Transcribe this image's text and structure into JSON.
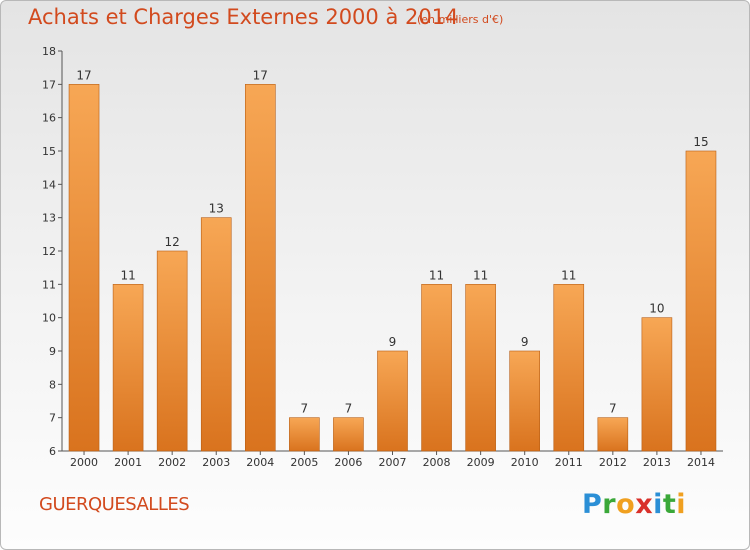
{
  "header": {
    "title": "Achats et Charges Externes 2000 à 2014",
    "subtitle": "(en milliers d'€)"
  },
  "footer": {
    "commune": "GUERQUESALLES",
    "logo": [
      "P",
      "r",
      "o",
      "x",
      "i",
      "t",
      "i"
    ]
  },
  "colors": {
    "bar_top": "#f7a755",
    "bar_bottom": "#d9731e",
    "bar_edge": "#b85e14",
    "title": "#d24a1e"
  },
  "chart_data": {
    "type": "bar",
    "title": "Achats et Charges Externes 2000 à 2014",
    "subtitle": "(en milliers d'€)",
    "categories": [
      "2000",
      "2001",
      "2002",
      "2003",
      "2004",
      "2005",
      "2006",
      "2007",
      "2008",
      "2009",
      "2010",
      "2011",
      "2012",
      "2013",
      "2014"
    ],
    "values": [
      17,
      11,
      12,
      13,
      17,
      7,
      7,
      9,
      11,
      11,
      9,
      11,
      7,
      10,
      15
    ],
    "ylim": [
      6,
      18
    ],
    "yticks": [
      "6",
      "7",
      "8",
      "9",
      "10",
      "11",
      "12",
      "13",
      "14",
      "15",
      "16",
      "17",
      "18"
    ],
    "grid": false,
    "xlabel": "",
    "ylabel": ""
  }
}
